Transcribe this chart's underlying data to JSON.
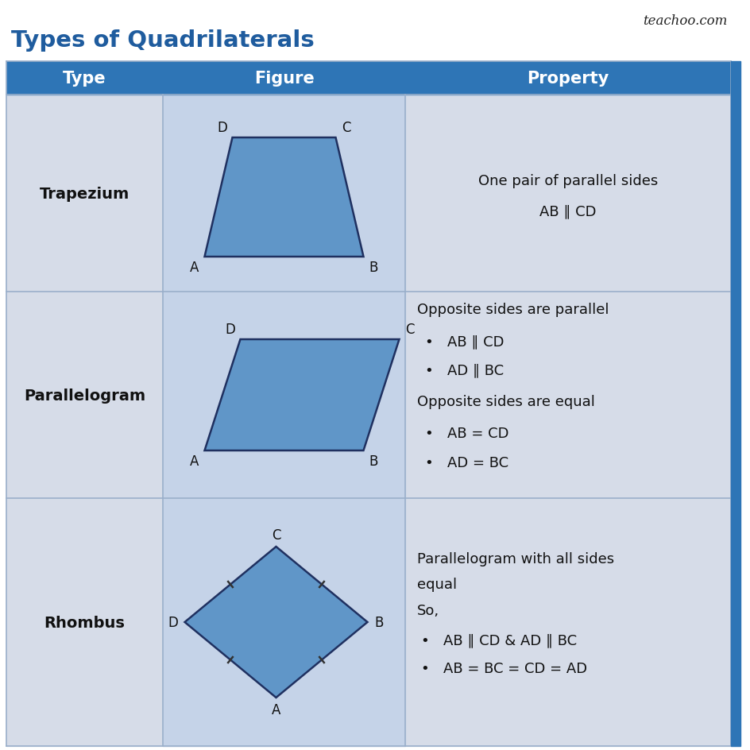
{
  "title": "Types of Quadrilaterals",
  "title_color": "#1F5C9E",
  "watermark": "teachoo.com",
  "bg_color": "#FFFFFF",
  "header_bg": "#2E75B6",
  "header_text_color": "#FFFFFF",
  "row_bg": "#D6DCE8",
  "fig_cell_bg": "#C5D3E8",
  "col_divider": "#9AAFC4",
  "headers": [
    "Type",
    "Figure",
    "Property"
  ],
  "shape_fill": "#6096C8",
  "shape_edge": "#1F3060",
  "accent_bar_color": "#2E75B6",
  "fig_width": 9.45,
  "fig_height": 9.45
}
